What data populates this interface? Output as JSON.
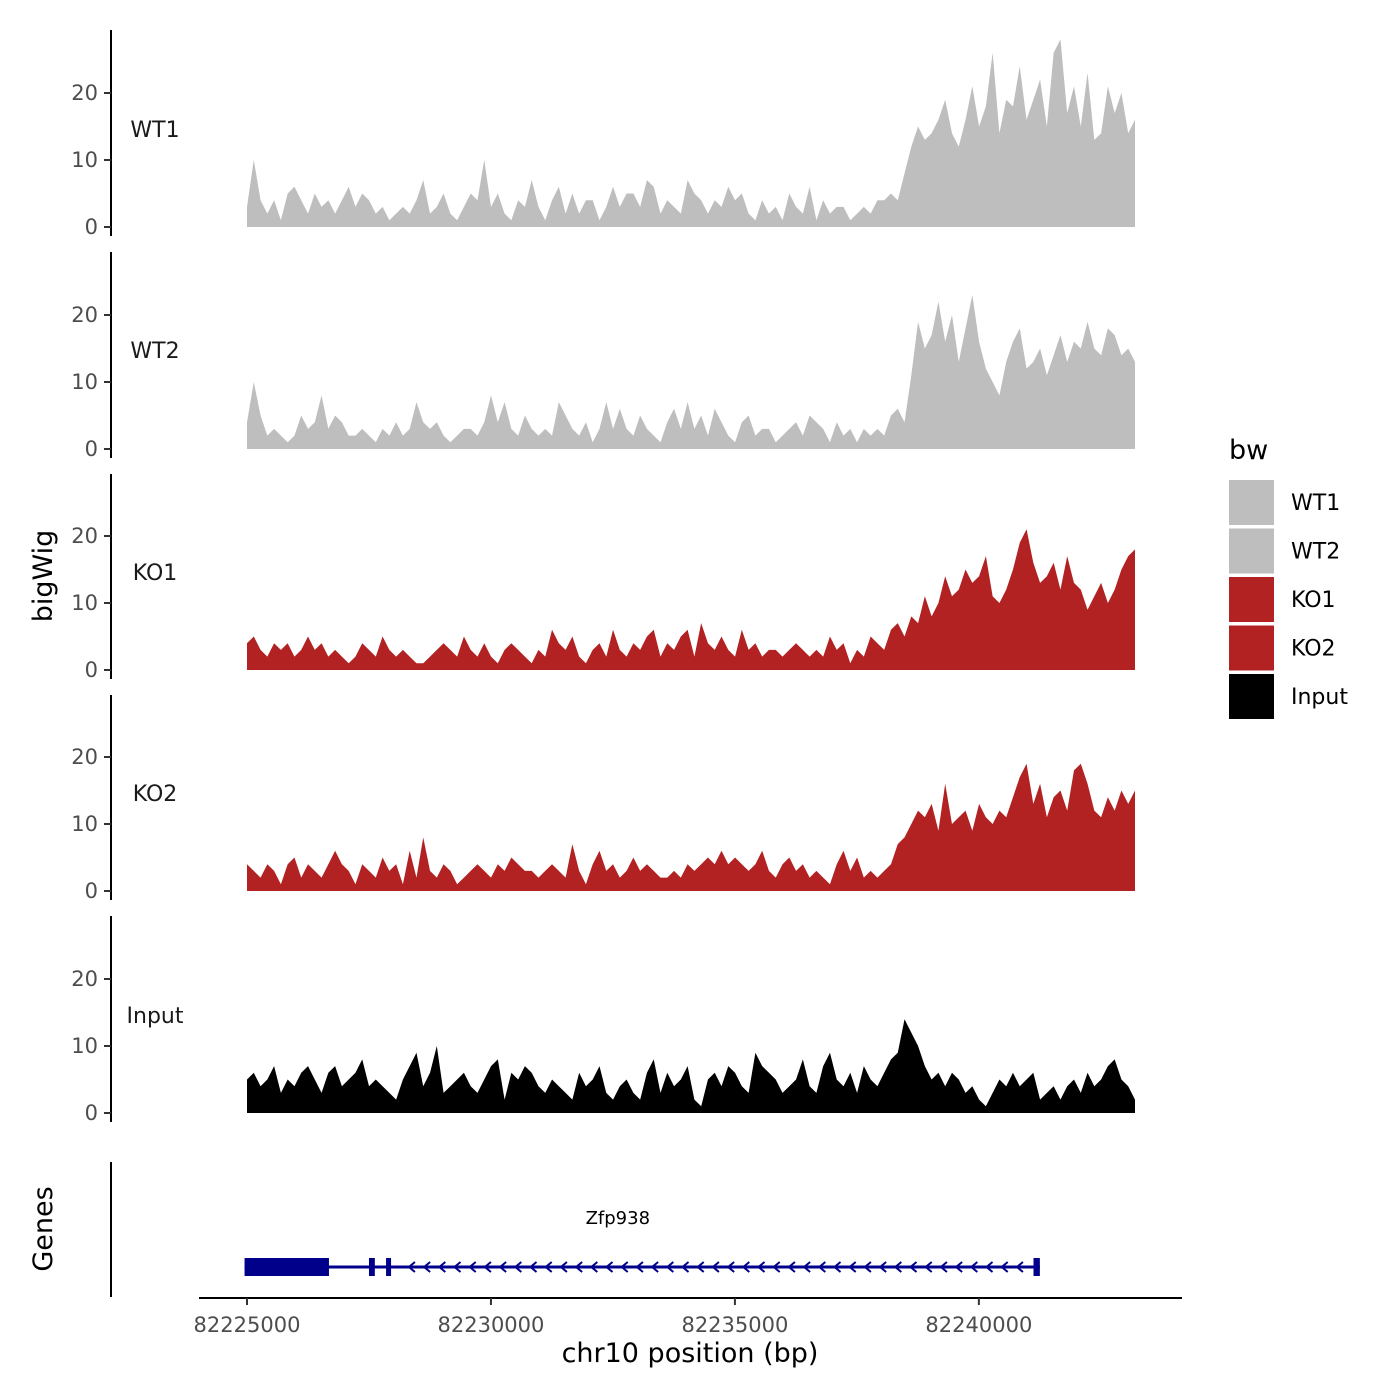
{
  "chart_data": {
    "type": "area",
    "ylabel": "bigWig",
    "xlabel": "chr10 position (bp)",
    "x_range": [
      82225000,
      82243200
    ],
    "ylim": [
      0,
      29
    ],
    "y_ticks": [
      0,
      10,
      20
    ],
    "x_ticks": [
      82225000,
      82230000,
      82235000,
      82240000
    ],
    "x_tick_labels": [
      "82225000",
      "82230000",
      "82235000",
      "82240000"
    ],
    "genes_label": "Genes",
    "legend": {
      "title": "bw",
      "entries": [
        {
          "label": "WT1",
          "color": "#bebebe"
        },
        {
          "label": "WT2",
          "color": "#bebebe"
        },
        {
          "label": "KO1",
          "color": "#b22222"
        },
        {
          "label": "KO2",
          "color": "#b22222"
        },
        {
          "label": "Input",
          "color": "#000000"
        }
      ]
    },
    "series": [
      {
        "name": "WT1",
        "color": "#bebebe",
        "values": [
          3,
          10,
          4,
          2,
          4,
          1,
          5,
          6,
          4,
          2,
          5,
          3,
          4,
          2,
          4,
          6,
          3,
          5,
          4,
          2,
          3,
          1,
          2,
          3,
          2,
          4,
          7,
          2,
          3,
          5,
          2,
          1,
          3,
          5,
          4,
          10,
          3,
          5,
          2,
          1,
          4,
          3,
          7,
          3,
          1,
          4,
          6,
          2,
          5,
          2,
          4,
          4,
          1,
          3,
          6,
          3,
          5,
          5,
          3,
          7,
          6,
          2,
          4,
          3,
          2,
          7,
          5,
          4,
          2,
          4,
          3,
          6,
          4,
          5,
          2,
          1,
          4,
          2,
          3,
          1,
          5,
          3,
          2,
          6,
          1,
          4,
          2,
          3,
          3,
          1,
          2,
          3,
          2,
          4,
          4,
          5,
          4,
          8,
          12,
          15,
          13,
          14,
          16,
          19,
          14,
          12,
          16,
          21,
          15,
          18,
          26,
          14,
          19,
          18,
          24,
          16,
          19,
          22,
          15,
          26,
          28,
          17,
          21,
          15,
          23,
          13,
          14,
          21,
          17,
          20,
          14,
          16
        ]
      },
      {
        "name": "WT2",
        "color": "#bebebe",
        "values": [
          4,
          10,
          5,
          2,
          3,
          2,
          1,
          2,
          5,
          3,
          4,
          8,
          3,
          5,
          4,
          2,
          2,
          3,
          2,
          1,
          3,
          2,
          4,
          2,
          3,
          7,
          4,
          3,
          4,
          2,
          1,
          2,
          3,
          3,
          2,
          4,
          8,
          4,
          7,
          3,
          2,
          5,
          3,
          2,
          3,
          2,
          7,
          5,
          3,
          2,
          4,
          1,
          3,
          7,
          3,
          6,
          3,
          2,
          5,
          3,
          2,
          1,
          4,
          6,
          3,
          7,
          3,
          5,
          2,
          6,
          4,
          2,
          1,
          4,
          5,
          2,
          3,
          3,
          1,
          2,
          3,
          4,
          2,
          5,
          4,
          3,
          1,
          4,
          2,
          3,
          1,
          3,
          2,
          3,
          2,
          5,
          6,
          4,
          11,
          19,
          15,
          17,
          22,
          16,
          20,
          13,
          18,
          23,
          16,
          12,
          10,
          8,
          13,
          16,
          18,
          12,
          13,
          15,
          11,
          14,
          17,
          13,
          16,
          15,
          19,
          15,
          14,
          18,
          17,
          14,
          15,
          13
        ]
      },
      {
        "name": "KO1",
        "color": "#b22222",
        "values": [
          4,
          5,
          3,
          2,
          4,
          3,
          4,
          2,
          3,
          5,
          3,
          4,
          2,
          3,
          2,
          1,
          2,
          4,
          3,
          2,
          5,
          3,
          2,
          3,
          2,
          1,
          1,
          2,
          3,
          4,
          3,
          2,
          5,
          3,
          2,
          4,
          2,
          1,
          3,
          4,
          3,
          2,
          1,
          3,
          2,
          6,
          4,
          3,
          5,
          2,
          1,
          3,
          4,
          2,
          6,
          3,
          2,
          4,
          3,
          5,
          6,
          2,
          4,
          3,
          5,
          6,
          2,
          7,
          4,
          3,
          5,
          3,
          2,
          6,
          3,
          4,
          2,
          3,
          3,
          2,
          3,
          4,
          3,
          2,
          3,
          2,
          5,
          3,
          4,
          1,
          3,
          2,
          5,
          4,
          3,
          6,
          7,
          5,
          8,
          7,
          11,
          8,
          10,
          14,
          11,
          12,
          15,
          13,
          14,
          17,
          11,
          10,
          12,
          15,
          19,
          21,
          16,
          13,
          14,
          16,
          12,
          17,
          13,
          12,
          9,
          11,
          13,
          10,
          12,
          15,
          17,
          18
        ]
      },
      {
        "name": "KO2",
        "color": "#b22222",
        "values": [
          4,
          3,
          2,
          4,
          3,
          1,
          4,
          5,
          2,
          4,
          3,
          2,
          4,
          6,
          4,
          3,
          1,
          4,
          3,
          2,
          5,
          3,
          4,
          1,
          6,
          2,
          8,
          3,
          2,
          4,
          3,
          1,
          2,
          3,
          4,
          3,
          2,
          4,
          3,
          5,
          4,
          3,
          3,
          2,
          3,
          4,
          3,
          2,
          7,
          3,
          1,
          4,
          6,
          3,
          4,
          2,
          3,
          5,
          3,
          4,
          3,
          2,
          2,
          3,
          2,
          4,
          3,
          4,
          5,
          4,
          6,
          4,
          5,
          4,
          3,
          4,
          6,
          3,
          2,
          4,
          5,
          3,
          4,
          2,
          3,
          2,
          1,
          4,
          6,
          3,
          5,
          2,
          3,
          2,
          3,
          4,
          7,
          8,
          10,
          12,
          11,
          13,
          9,
          16,
          10,
          11,
          12,
          9,
          13,
          11,
          10,
          12,
          11,
          14,
          17,
          19,
          13,
          16,
          11,
          14,
          15,
          12,
          18,
          19,
          16,
          12,
          11,
          14,
          12,
          15,
          13,
          15
        ]
      },
      {
        "name": "Input",
        "color": "#000000",
        "values": [
          5,
          6,
          4,
          5,
          7,
          3,
          5,
          4,
          6,
          7,
          5,
          3,
          6,
          7,
          4,
          5,
          6,
          8,
          4,
          5,
          4,
          3,
          2,
          5,
          7,
          9,
          4,
          6,
          10,
          3,
          4,
          5,
          6,
          4,
          3,
          5,
          7,
          8,
          2,
          6,
          5,
          7,
          6,
          4,
          3,
          5,
          4,
          3,
          2,
          6,
          4,
          5,
          7,
          3,
          2,
          4,
          5,
          3,
          2,
          6,
          8,
          3,
          6,
          4,
          5,
          7,
          2,
          1,
          5,
          6,
          4,
          7,
          6,
          4,
          3,
          9,
          7,
          6,
          5,
          3,
          4,
          5,
          8,
          4,
          3,
          7,
          9,
          5,
          4,
          6,
          3,
          7,
          5,
          4,
          6,
          8,
          9,
          14,
          12,
          10,
          7,
          5,
          6,
          4,
          6,
          5,
          3,
          4,
          2,
          1,
          3,
          5,
          4,
          6,
          4,
          5,
          6,
          2,
          3,
          4,
          2,
          4,
          5,
          3,
          6,
          4,
          5,
          7,
          8,
          5,
          4,
          2
        ]
      }
    ],
    "gene": {
      "name": "Zfp938",
      "start": 82224950,
      "end": 82241250,
      "strand": "-",
      "exons": [
        [
          82224950,
          82226680
        ],
        [
          82227500,
          82227620
        ],
        [
          82227850,
          82227950
        ],
        [
          82241120,
          82241250
        ]
      ],
      "color": "#00008b"
    }
  }
}
